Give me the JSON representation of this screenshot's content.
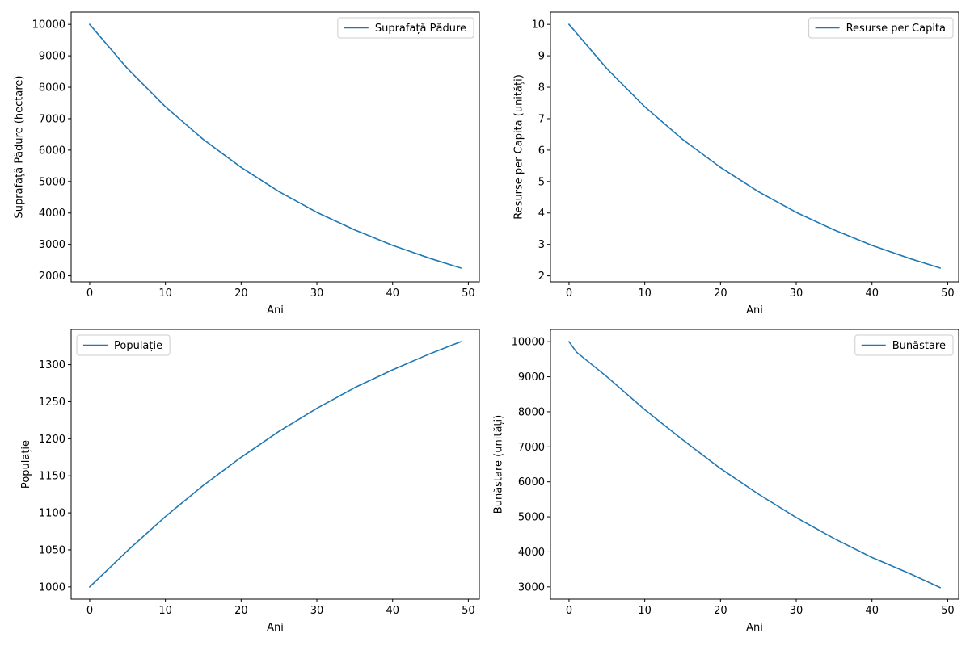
{
  "chart_data": [
    {
      "type": "line",
      "xlabel": "Ani",
      "ylabel": "Suprafață Pădure (hectare)",
      "xlim": [
        -2.45,
        51.45
      ],
      "ylim": [
        1810,
        10390
      ],
      "xticks": [
        0,
        10,
        20,
        30,
        40,
        50
      ],
      "yticks": [
        2000,
        3000,
        4000,
        5000,
        6000,
        7000,
        8000,
        9000,
        10000
      ],
      "grid": false,
      "legend_position": "top-right",
      "series": [
        {
          "name": "Suprafață Pădure",
          "color": "#1f77b4",
          "x": [
            0,
            5,
            10,
            15,
            20,
            25,
            30,
            35,
            40,
            45,
            49
          ],
          "y": [
            10000,
            8590,
            7380,
            6340,
            5450,
            4680,
            4020,
            3460,
            2970,
            2550,
            2250
          ]
        }
      ]
    },
    {
      "type": "line",
      "xlabel": "Ani",
      "ylabel": "Resurse per Capita (unități)",
      "xlim": [
        -2.45,
        51.45
      ],
      "ylim": [
        1.81,
        10.39
      ],
      "xticks": [
        0,
        10,
        20,
        30,
        40,
        50
      ],
      "yticks": [
        2,
        3,
        4,
        5,
        6,
        7,
        8,
        9,
        10
      ],
      "grid": false,
      "legend_position": "top-right",
      "series": [
        {
          "name": "Resurse per Capita",
          "color": "#1f77b4",
          "x": [
            0,
            5,
            10,
            15,
            20,
            25,
            30,
            35,
            40,
            45,
            49
          ],
          "y": [
            10.0,
            8.59,
            7.38,
            6.34,
            5.45,
            4.68,
            4.02,
            3.46,
            2.97,
            2.55,
            2.25
          ]
        }
      ]
    },
    {
      "type": "line",
      "xlabel": "Ani",
      "ylabel": "Populație",
      "xlim": [
        -2.45,
        51.45
      ],
      "ylim": [
        983.5,
        1347.5
      ],
      "xticks": [
        0,
        10,
        20,
        30,
        40,
        50
      ],
      "yticks": [
        1000,
        1050,
        1100,
        1150,
        1200,
        1250,
        1300
      ],
      "grid": false,
      "legend_position": "top-left",
      "series": [
        {
          "name": "Populație",
          "color": "#1f77b4",
          "x": [
            0,
            5,
            10,
            15,
            20,
            25,
            30,
            35,
            40,
            45,
            49
          ],
          "y": [
            1000,
            1049,
            1095,
            1137,
            1175,
            1210,
            1241,
            1269,
            1293,
            1315,
            1331
          ]
        }
      ]
    },
    {
      "type": "line",
      "xlabel": "Ani",
      "ylabel": "Bunăstare (unități)",
      "xlim": [
        -2.45,
        51.45
      ],
      "ylim": [
        2650,
        10350
      ],
      "xticks": [
        0,
        10,
        20,
        30,
        40,
        50
      ],
      "yticks": [
        3000,
        4000,
        5000,
        6000,
        7000,
        8000,
        9000,
        10000
      ],
      "grid": false,
      "legend_position": "top-right",
      "series": [
        {
          "name": "Bunăstare",
          "color": "#1f77b4",
          "x": [
            0,
            1,
            5,
            10,
            15,
            20,
            25,
            30,
            35,
            40,
            45,
            49
          ],
          "y": [
            10000,
            9700,
            9000,
            8060,
            7200,
            6380,
            5650,
            4980,
            4380,
            3840,
            3380,
            2980
          ]
        }
      ]
    }
  ]
}
